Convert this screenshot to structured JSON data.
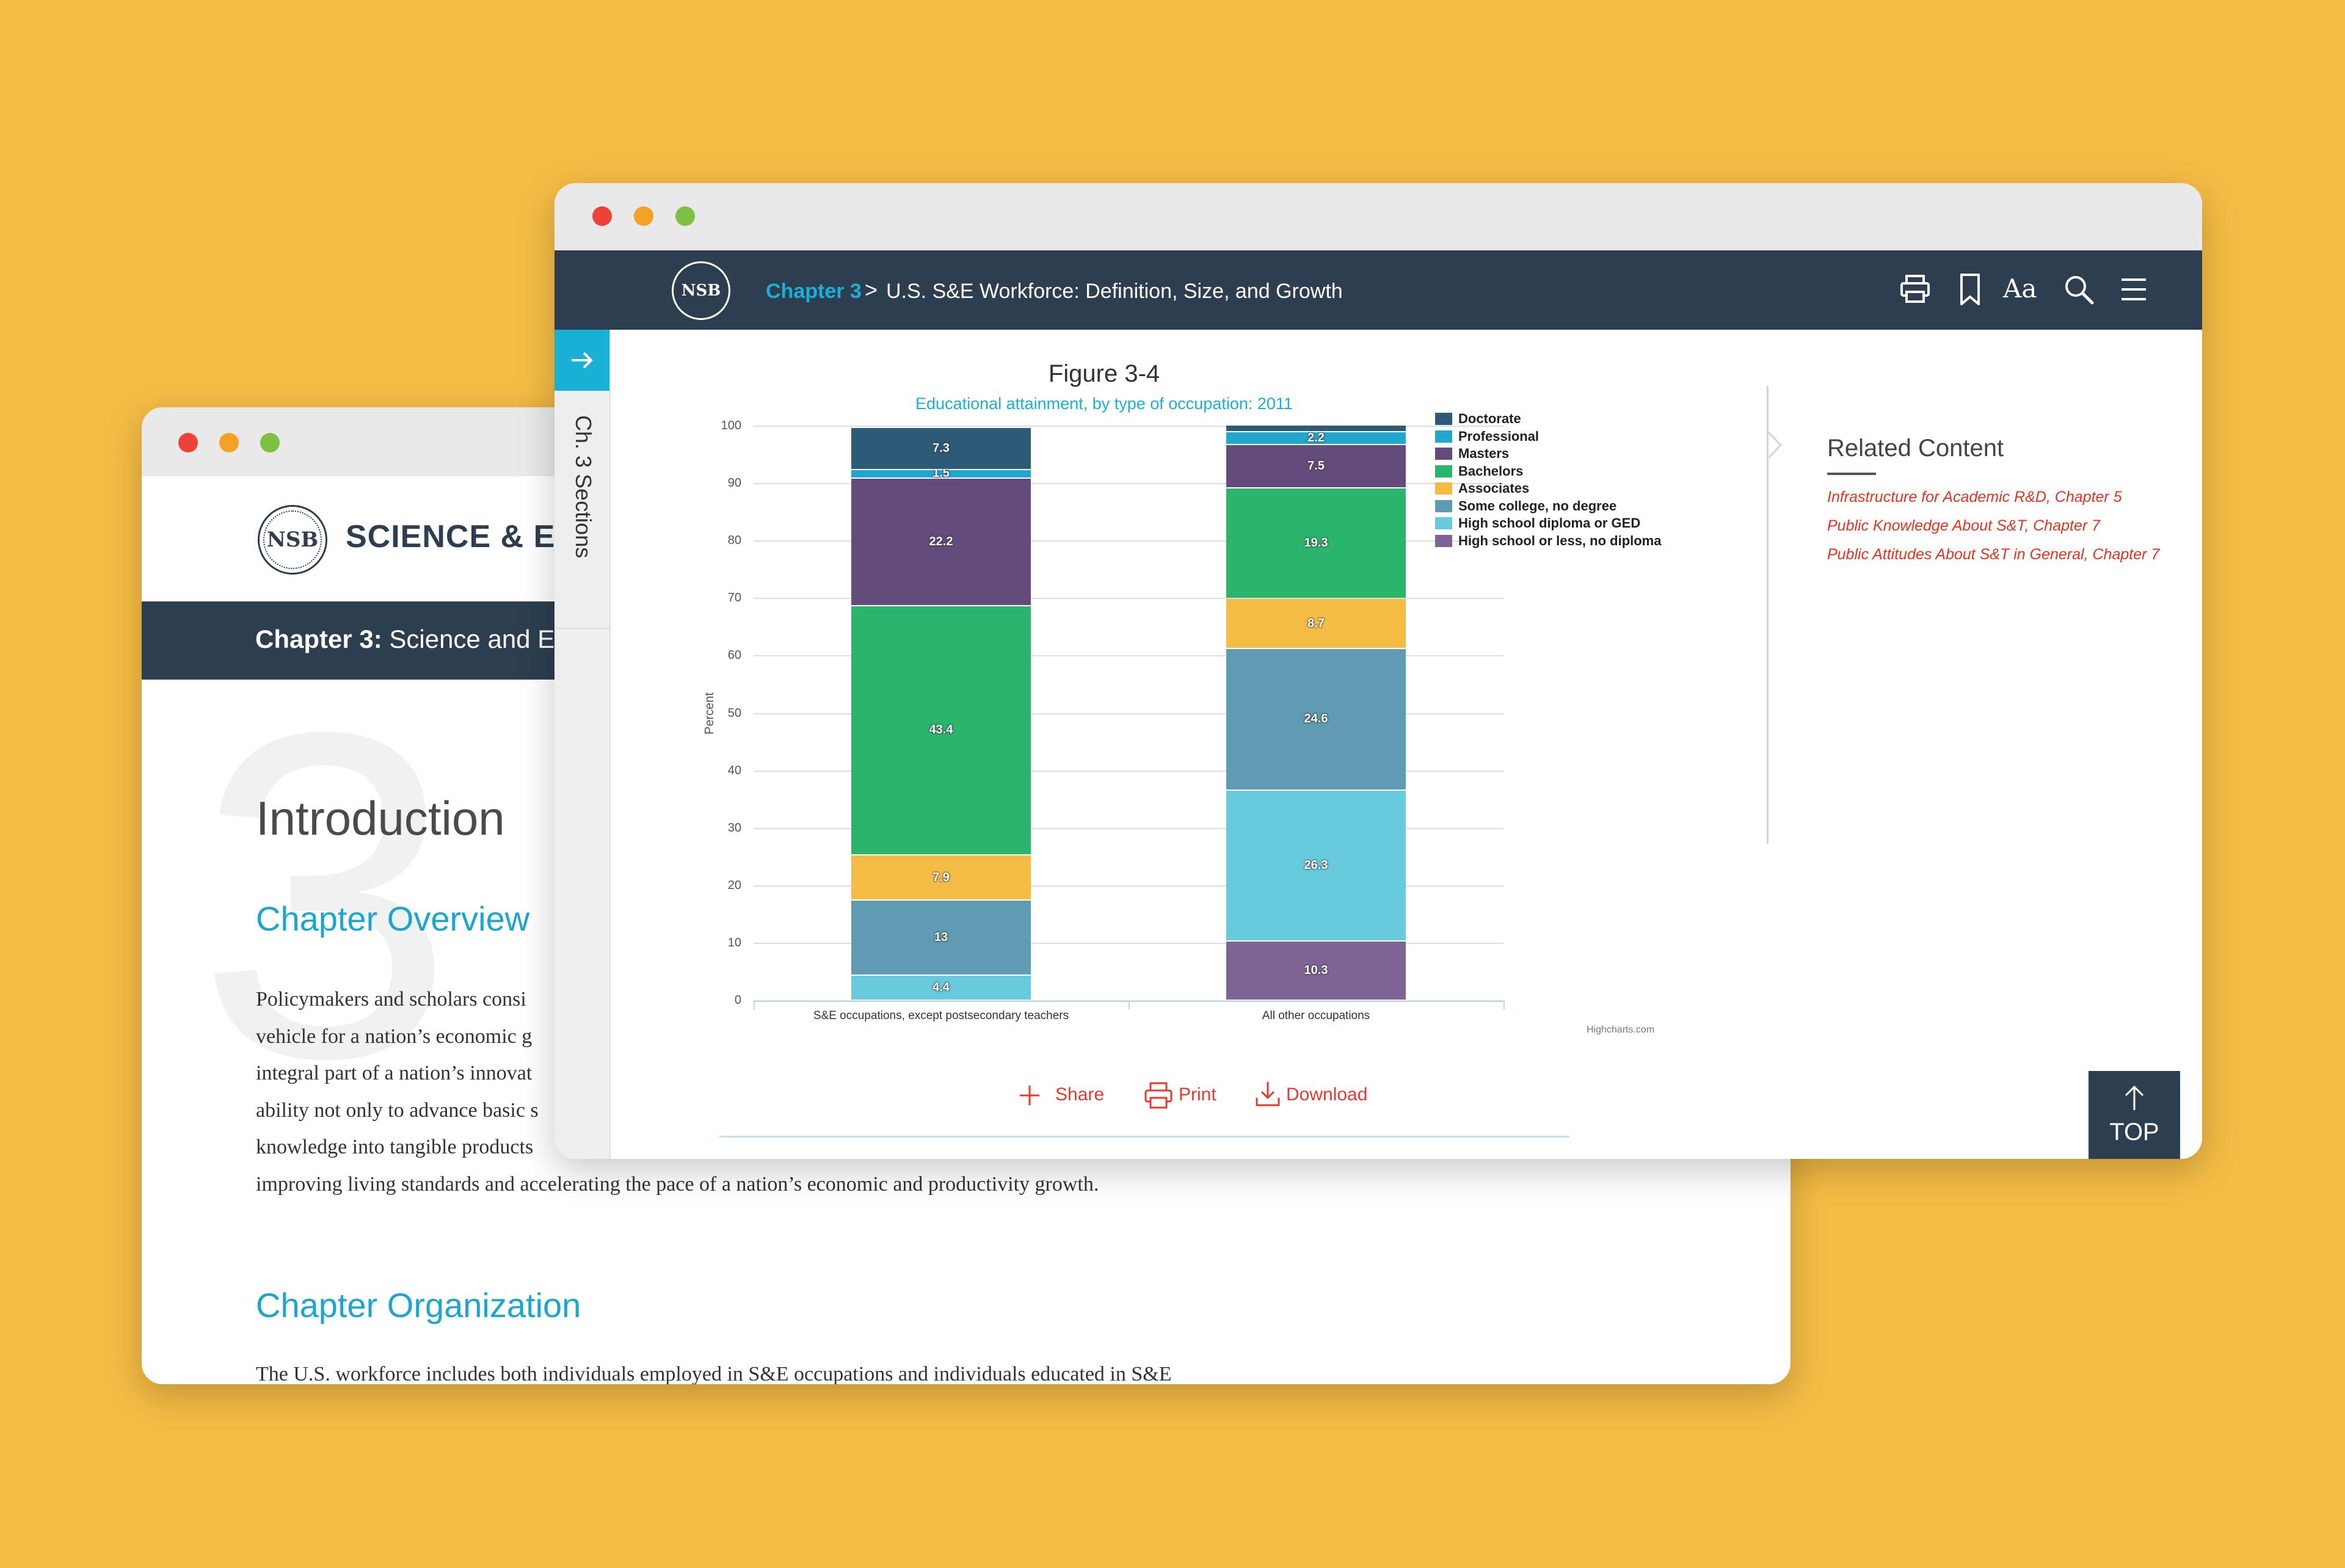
{
  "back_window": {
    "brand": "SCIENCE & ENG",
    "chapter_bold": "Chapter 3:",
    "chapter_rest": " Science and E",
    "chapter_number": "3",
    "intro_heading": "Introduction",
    "overview_heading": "Chapter Overview",
    "paragraph_lines": [
      "Policymakers and scholars consi",
      "vehicle for a nation’s economic g",
      "integral part of a nation’s innovat",
      "ability not only to advance basic s",
      "knowledge into tangible products",
      "improving living standards and accelerating the pace of a nation’s economic and productivity growth."
    ],
    "organization_heading": "Chapter Organization",
    "cut_line": "The U.S. workforce includes both individuals employed in S&E occupations and individuals educated in S&E"
  },
  "front_window": {
    "breadcrumb": {
      "chapter": "Chapter 3",
      "separator": ">",
      "title": "U.S. S&E Workforce: Definition, Size, and Growth"
    },
    "nav_icons": [
      "print-icon",
      "bookmark-icon",
      "text-size-icon",
      "search-icon",
      "menu-icon"
    ],
    "text_size_label": "Aa",
    "sidebar_label": "Ch. 3 Sections",
    "actions": {
      "share": "Share",
      "print": "Print",
      "download": "Download"
    },
    "credit": "Highcharts.com",
    "related": {
      "heading": "Related Content",
      "links": [
        "Infrastructure for Academic R&D, Chapter 5",
        "Public Knowledge About S&T, Chapter 7",
        "Public Attitudes About S&T in General, Chapter 7"
      ]
    },
    "top_label": "TOP"
  },
  "colors": {
    "background": "#F5BC45",
    "navbar": "#2C3E50",
    "accent_teal": "#1AB0D6",
    "link_red": "#E5331F"
  },
  "chart_data": {
    "type": "bar",
    "stacked": true,
    "title": "Figure 3-4",
    "subtitle": "Educational attainment, by type of occupation: 2011",
    "ylabel": "Percent",
    "xlabel": "",
    "ylim": [
      0,
      100
    ],
    "yticks": [
      0,
      10,
      20,
      30,
      40,
      50,
      60,
      70,
      80,
      90,
      100
    ],
    "grid": true,
    "legend_position": "top-right",
    "categories": [
      "S&E occupations, except postsecondary teachers",
      "All other occupations"
    ],
    "series": [
      {
        "name": "High school or less, no diploma",
        "color": "#7D6494",
        "values": [
          0.0,
          10.3
        ],
        "labels": [
          "",
          "10.3"
        ]
      },
      {
        "name": "High school diploma or GED",
        "color": "#68CBDD",
        "values": [
          4.4,
          26.3
        ],
        "labels": [
          "4.4",
          "26.3"
        ]
      },
      {
        "name": "Some college, no degree",
        "color": "#5F9BB2",
        "values": [
          13,
          24.6
        ],
        "labels": [
          "13",
          "24.6"
        ]
      },
      {
        "name": "Associates",
        "color": "#F4BB45",
        "values": [
          7.9,
          8.7
        ],
        "labels": [
          "7.9",
          "8.7"
        ]
      },
      {
        "name": "Bachelors",
        "color": "#2BB46C",
        "values": [
          43.4,
          19.3
        ],
        "labels": [
          "43.4",
          "19.3"
        ]
      },
      {
        "name": "Masters",
        "color": "#634B7C",
        "values": [
          22.2,
          7.5
        ],
        "labels": [
          "22.2",
          "7.5"
        ]
      },
      {
        "name": "Professional",
        "color": "#1FA7CE",
        "values": [
          1.5,
          2.2
        ],
        "labels": [
          "1.5",
          "2.2"
        ]
      },
      {
        "name": "Doctorate",
        "color": "#2C5A77",
        "values": [
          7.3,
          1.2
        ],
        "labels": [
          "7.3",
          ""
        ]
      }
    ],
    "legend_order": [
      "Doctorate",
      "Professional",
      "Masters",
      "Bachelors",
      "Associates",
      "Some college, no degree",
      "High school diploma or GED",
      "High school or less, no diploma"
    ]
  }
}
